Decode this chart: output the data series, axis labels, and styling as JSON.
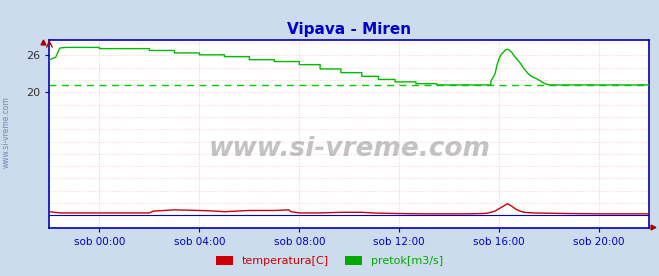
{
  "title": "Vipava - Miren",
  "title_color": "#0000cc",
  "bg_color": "#ccdcec",
  "plot_bg_color": "#ffffff",
  "grid_color_h": "#ffbbbb",
  "grid_color_v": "#cccccc",
  "x_min": 0,
  "x_max": 288,
  "y_min": -2.0,
  "y_max": 28.5,
  "yticks": [
    20,
    26
  ],
  "xtick_labels": [
    "sob 00:00",
    "sob 04:00",
    "sob 08:00",
    "sob 12:00",
    "sob 16:00",
    "sob 20:00"
  ],
  "xtick_positions": [
    24,
    72,
    120,
    168,
    216,
    264
  ],
  "avg_line_y": 21.2,
  "avg_line_color": "#00cc00",
  "border_color": "#0000bb",
  "watermark": "www.si-vreme.com",
  "legend": [
    {
      "label": "temperatura[C]",
      "color": "#cc0000"
    },
    {
      "label": "pretok[m3/s]",
      "color": "#00aa00"
    }
  ],
  "green_line": [
    [
      0,
      25.3
    ],
    [
      3,
      25.7
    ],
    [
      5,
      27.2
    ],
    [
      8,
      27.3
    ],
    [
      24,
      27.3
    ],
    [
      24,
      27.1
    ],
    [
      48,
      27.1
    ],
    [
      48,
      26.8
    ],
    [
      60,
      26.8
    ],
    [
      60,
      26.4
    ],
    [
      72,
      26.4
    ],
    [
      72,
      26.1
    ],
    [
      84,
      26.1
    ],
    [
      84,
      25.8
    ],
    [
      96,
      25.8
    ],
    [
      96,
      25.3
    ],
    [
      108,
      25.3
    ],
    [
      108,
      25.0
    ],
    [
      120,
      25.0
    ],
    [
      120,
      24.5
    ],
    [
      130,
      24.5
    ],
    [
      130,
      23.8
    ],
    [
      140,
      23.8
    ],
    [
      140,
      23.2
    ],
    [
      150,
      23.2
    ],
    [
      150,
      22.6
    ],
    [
      158,
      22.6
    ],
    [
      158,
      22.1
    ],
    [
      166,
      22.1
    ],
    [
      166,
      21.7
    ],
    [
      176,
      21.7
    ],
    [
      176,
      21.4
    ],
    [
      186,
      21.4
    ],
    [
      186,
      21.2
    ],
    [
      212,
      21.2
    ],
    [
      212,
      21.8
    ],
    [
      214,
      23.0
    ],
    [
      215,
      24.5
    ],
    [
      216,
      25.5
    ],
    [
      217,
      26.2
    ],
    [
      218,
      26.5
    ],
    [
      219,
      26.9
    ],
    [
      220,
      27.0
    ],
    [
      221,
      26.8
    ],
    [
      222,
      26.5
    ],
    [
      223,
      26.0
    ],
    [
      225,
      25.2
    ],
    [
      226,
      24.8
    ],
    [
      228,
      23.8
    ],
    [
      230,
      23.0
    ],
    [
      232,
      22.5
    ],
    [
      234,
      22.2
    ],
    [
      236,
      21.8
    ],
    [
      238,
      21.4
    ],
    [
      240,
      21.2
    ],
    [
      288,
      21.2
    ]
  ],
  "red_line": [
    [
      0,
      0.6
    ],
    [
      5,
      0.4
    ],
    [
      24,
      0.4
    ],
    [
      48,
      0.4
    ],
    [
      50,
      0.7
    ],
    [
      60,
      0.9
    ],
    [
      72,
      0.8
    ],
    [
      80,
      0.7
    ],
    [
      84,
      0.6
    ],
    [
      90,
      0.7
    ],
    [
      96,
      0.8
    ],
    [
      108,
      0.8
    ],
    [
      115,
      0.9
    ],
    [
      116,
      0.6
    ],
    [
      120,
      0.4
    ],
    [
      130,
      0.4
    ],
    [
      140,
      0.5
    ],
    [
      150,
      0.5
    ],
    [
      155,
      0.4
    ],
    [
      160,
      0.35
    ],
    [
      168,
      0.3
    ],
    [
      180,
      0.25
    ],
    [
      190,
      0.25
    ],
    [
      200,
      0.25
    ],
    [
      208,
      0.3
    ],
    [
      210,
      0.35
    ],
    [
      212,
      0.5
    ],
    [
      214,
      0.7
    ],
    [
      216,
      1.1
    ],
    [
      218,
      1.5
    ],
    [
      220,
      1.9
    ],
    [
      222,
      1.5
    ],
    [
      224,
      1.0
    ],
    [
      226,
      0.7
    ],
    [
      228,
      0.5
    ],
    [
      232,
      0.4
    ],
    [
      240,
      0.35
    ],
    [
      250,
      0.3
    ],
    [
      264,
      0.25
    ],
    [
      288,
      0.25
    ]
  ]
}
